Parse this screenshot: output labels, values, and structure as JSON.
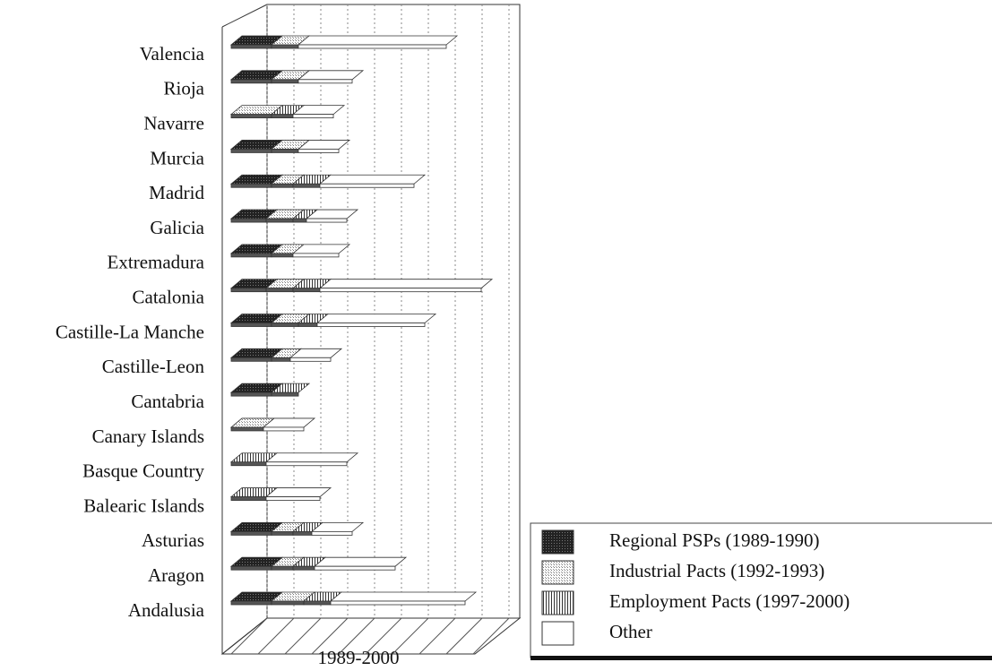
{
  "chart_data": {
    "type": "bar3d_stacked_horizontal",
    "xlabel": "1989-2000",
    "categories": [
      "Valencia",
      "Rioja",
      "Navarre",
      "Murcia",
      "Madrid",
      "Galicia",
      "Extremadura",
      "Catalonia",
      "Castille-La Manche",
      "Castille-Leon",
      "Cantabria",
      "Canary Islands",
      "Basque Country",
      "Balearic Islands",
      "Asturias",
      "Aragon",
      "Andalusia"
    ],
    "series": [
      {
        "name": "Regional PSPs (1989-1990)",
        "color": "#222222",
        "values": [
          1.5,
          1.5,
          0,
          1.5,
          1.5,
          1.3,
          1.5,
          1.3,
          1.5,
          1.5,
          1.5,
          0,
          0,
          0,
          1.5,
          1.5,
          1.5
        ]
      },
      {
        "name": "Industrial Pacts (1992-1993)",
        "color": "#bbbbbb",
        "values": [
          1.0,
          1.0,
          1.5,
          1.0,
          0.8,
          1.0,
          0.8,
          1.0,
          1.0,
          0.7,
          0,
          1.2,
          0,
          0,
          0.8,
          0.8,
          1.2
        ]
      },
      {
        "name": "Employment Pacts (1997-2000)",
        "color": "#444444",
        "values": [
          0,
          0,
          0.8,
          0,
          1.0,
          0.5,
          0,
          1.0,
          0.7,
          0,
          1.0,
          0,
          1.3,
          1.3,
          0.7,
          0.8,
          1.0
        ]
      },
      {
        "name": "Other",
        "color": "#ffffff",
        "values": [
          5.5,
          2.0,
          1.5,
          1.5,
          3.5,
          1.5,
          1.7,
          6.0,
          4.0,
          1.5,
          0,
          1.5,
          3.0,
          2.0,
          1.5,
          3.0,
          5.0
        ]
      }
    ],
    "xlim": [
      0,
      9.4
    ],
    "xticks": [
      0,
      1,
      2,
      3,
      4,
      5,
      6,
      7,
      8,
      9
    ],
    "grid": true
  }
}
